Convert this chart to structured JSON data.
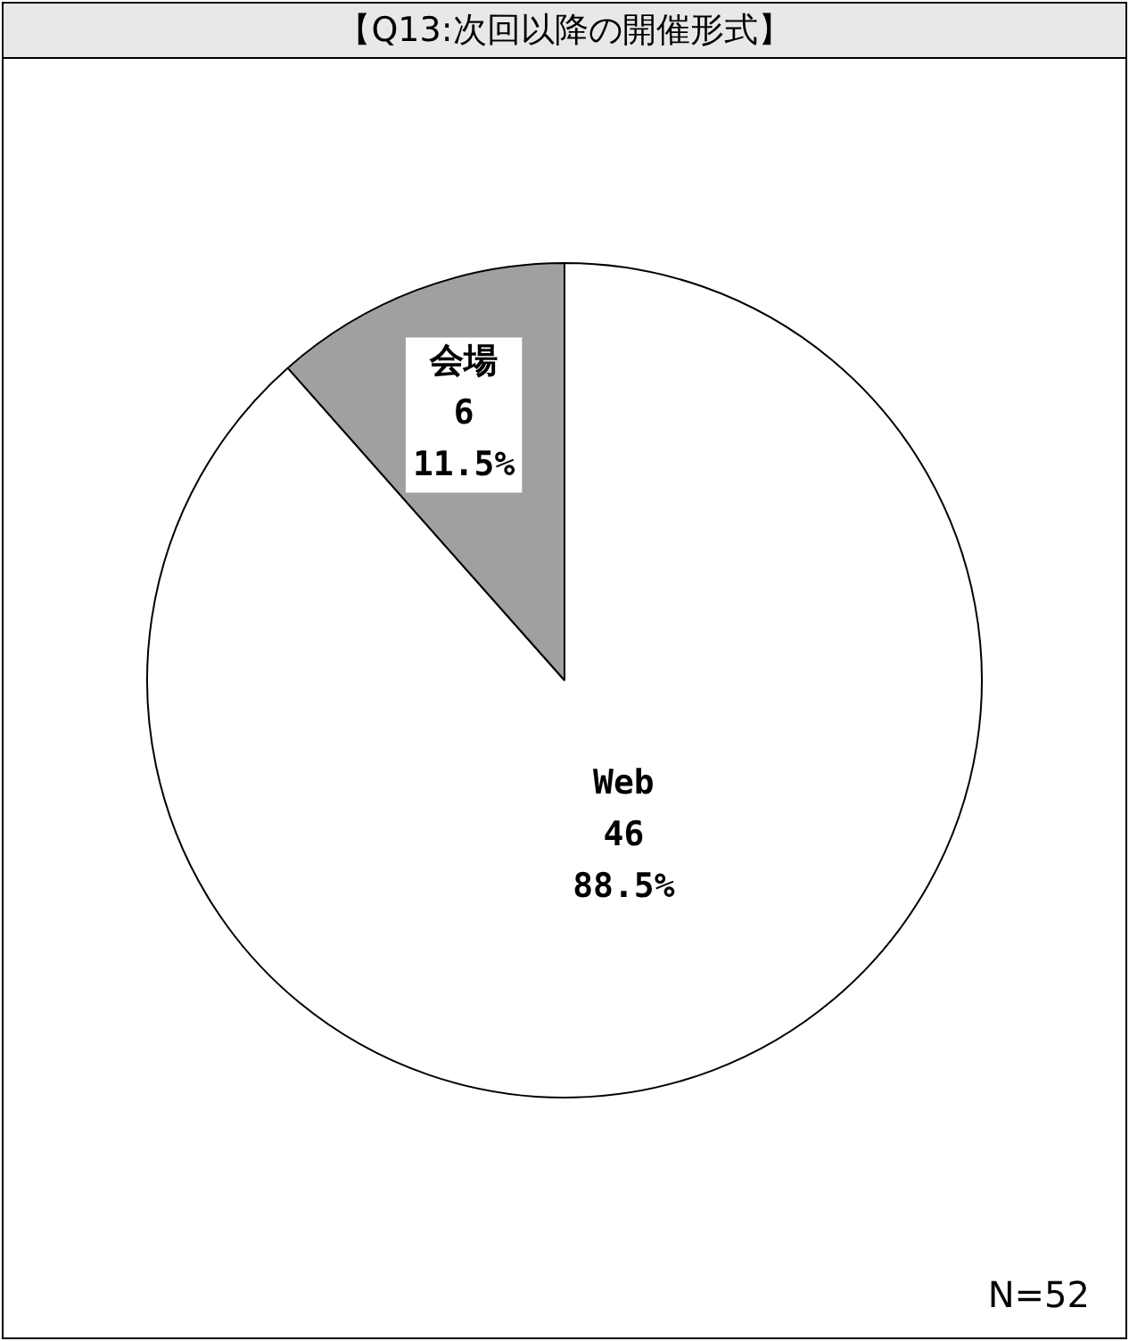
{
  "chart_data": {
    "type": "pie",
    "title": "【Q13:次回以降の開催形式】",
    "categories": [
      "Web",
      "会場"
    ],
    "values": [
      46,
      6
    ],
    "colors": [
      "#ffffff",
      "#a0a0a0"
    ],
    "value_labels": [
      "46\n88.5%",
      "6\n11.5%"
    ],
    "annotations": [
      "N=52"
    ],
    "legend": false
  }
}
